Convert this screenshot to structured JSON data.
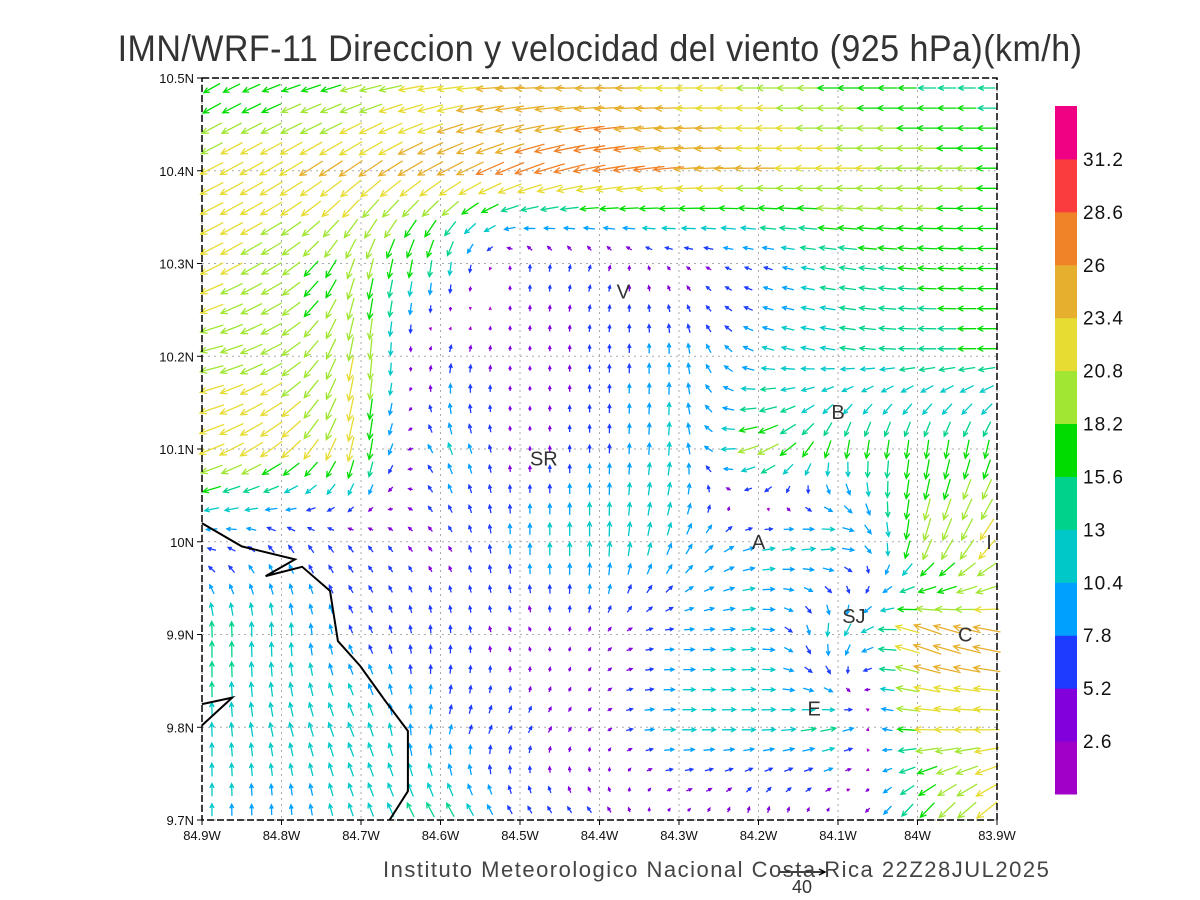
{
  "chart_data": {
    "type": "vector",
    "title": "IMN/WRF-11 Direccion y velocidad del viento (925 hPa)(km/h)",
    "footer": "Instituto Meteorologico Nacional Costa Rica  22Z28JUL2025",
    "reference_vector": {
      "value": 40,
      "label": "40"
    },
    "xlim": [
      -84.9,
      -83.9
    ],
    "ylim": [
      9.7,
      10.5
    ],
    "x_ticks": [
      {
        "v": -84.9,
        "label": "84.9W"
      },
      {
        "v": -84.8,
        "label": "84.8W"
      },
      {
        "v": -84.7,
        "label": "84.7W"
      },
      {
        "v": -84.6,
        "label": "84.6W"
      },
      {
        "v": -84.5,
        "label": "84.5W"
      },
      {
        "v": -84.4,
        "label": "84.4W"
      },
      {
        "v": -84.3,
        "label": "84.3W"
      },
      {
        "v": -84.2,
        "label": "84.2W"
      },
      {
        "v": -84.1,
        "label": "84.1W"
      },
      {
        "v": -84.0,
        "label": "84W"
      },
      {
        "v": -83.9,
        "label": "83.9W"
      }
    ],
    "y_ticks": [
      {
        "v": 9.7,
        "label": "9.7N"
      },
      {
        "v": 9.8,
        "label": "9.8N"
      },
      {
        "v": 9.9,
        "label": "9.9N"
      },
      {
        "v": 10.0,
        "label": "10N"
      },
      {
        "v": 10.1,
        "label": "10.1N"
      },
      {
        "v": 10.2,
        "label": "10.2N"
      },
      {
        "v": 10.3,
        "label": "10.3N"
      },
      {
        "v": 10.4,
        "label": "10.4N"
      },
      {
        "v": 10.5,
        "label": "10.5N"
      }
    ],
    "grid": true,
    "colorbar": {
      "levels": [
        "2.6",
        "5.2",
        "7.8",
        "10.4",
        "13",
        "15.6",
        "18.2",
        "20.8",
        "23.4",
        "26",
        "28.6",
        "31.2"
      ],
      "colors": [
        "#a000c8",
        "#8200dc",
        "#1e3cff",
        "#00a0ff",
        "#00c8c8",
        "#00d28c",
        "#00dc00",
        "#a0e632",
        "#e6dc32",
        "#e6af2d",
        "#f08228",
        "#fa3c3c",
        "#f00082"
      ],
      "placement": "right"
    },
    "cities": [
      {
        "label": "V",
        "lon": -84.37,
        "lat": 10.27
      },
      {
        "label": "B",
        "lon": -84.1,
        "lat": 10.14
      },
      {
        "label": "SR",
        "lon": -84.47,
        "lat": 10.09
      },
      {
        "label": "A",
        "lon": -84.2,
        "lat": 10.0
      },
      {
        "label": "I",
        "lon": -83.91,
        "lat": 10.0
      },
      {
        "label": "SJ",
        "lon": -84.08,
        "lat": 9.92
      },
      {
        "label": "C",
        "lon": -83.94,
        "lat": 9.9
      },
      {
        "label": "E",
        "lon": -84.13,
        "lat": 9.82
      }
    ],
    "coastline": [
      [
        -84.9,
        10.02
      ],
      [
        -84.85,
        9.995
      ],
      [
        -84.783,
        9.981
      ],
      [
        -84.82,
        9.963
      ],
      [
        -84.774,
        9.973
      ],
      [
        -84.739,
        9.947
      ],
      [
        -84.729,
        9.893
      ],
      [
        -84.701,
        9.866
      ],
      [
        -84.67,
        9.829
      ],
      [
        -84.641,
        9.796
      ],
      [
        -84.641,
        9.731
      ],
      [
        -84.664,
        9.7
      ]
    ],
    "coastline2": [
      [
        -84.9,
        9.825
      ],
      [
        -84.862,
        9.832
      ],
      [
        -84.9,
        9.802
      ]
    ],
    "wind_grid": {
      "lons": [
        -84.9,
        -84.8,
        -84.7,
        -84.6,
        -84.5,
        -84.4,
        -84.3,
        -84.2,
        -84.1,
        -84.0,
        -83.9
      ],
      "lats": [
        10.5,
        10.4,
        10.3,
        10.2,
        10.1,
        10.0,
        9.9,
        9.8,
        9.7
      ],
      "uv_kmh": [
        [
          [
            -13,
            -8
          ],
          [
            -15,
            -5
          ],
          [
            -18,
            -4
          ],
          [
            -22,
            -2
          ],
          [
            -25,
            0
          ],
          [
            -24,
            0
          ],
          [
            -22,
            0
          ],
          [
            -20,
            0
          ],
          [
            -17,
            0
          ],
          [
            -15,
            0
          ],
          [
            -14,
            0
          ]
        ],
        [
          [
            -20,
            -10
          ],
          [
            -20,
            -12
          ],
          [
            -20,
            -14
          ],
          [
            -22,
            -12
          ],
          [
            -25,
            -10
          ],
          [
            -28,
            -5
          ],
          [
            -26,
            -2
          ],
          [
            -24,
            0
          ],
          [
            -22,
            0
          ],
          [
            -20,
            0
          ],
          [
            -18,
            0
          ]
        ],
        [
          [
            -20,
            -10
          ],
          [
            -16,
            -10
          ],
          [
            -5,
            -18
          ],
          [
            -2,
            -15
          ],
          [
            0,
            6
          ],
          [
            2,
            5
          ],
          [
            -3,
            2
          ],
          [
            -6,
            2
          ],
          [
            -14,
            2
          ],
          [
            -16,
            1
          ],
          [
            -16,
            0
          ]
        ],
        [
          [
            -20,
            -4
          ],
          [
            -18,
            -10
          ],
          [
            -2,
            -22
          ],
          [
            2,
            8
          ],
          [
            0,
            3
          ],
          [
            0,
            6
          ],
          [
            0,
            10
          ],
          [
            -10,
            3
          ],
          [
            -13,
            2
          ],
          [
            -15,
            0
          ],
          [
            -16,
            0
          ]
        ],
        [
          [
            -22,
            -8
          ],
          [
            -18,
            -14
          ],
          [
            -3,
            -22
          ],
          [
            -4,
            11
          ],
          [
            0,
            3
          ],
          [
            0,
            7
          ],
          [
            1,
            12
          ],
          [
            -20,
            -8
          ],
          [
            -3,
            -16
          ],
          [
            -2,
            -16
          ],
          [
            -4,
            -16
          ]
        ],
        [
          [
            -8,
            0
          ],
          [
            -5,
            6
          ],
          [
            -4,
            5
          ],
          [
            -3,
            3
          ],
          [
            0,
            10
          ],
          [
            0,
            14
          ],
          [
            4,
            10
          ],
          [
            10,
            2
          ],
          [
            14,
            2
          ],
          [
            -5,
            -20
          ],
          [
            -14,
            -18
          ]
        ],
        [
          [
            0,
            15
          ],
          [
            0,
            12
          ],
          [
            -3,
            6
          ],
          [
            0,
            7
          ],
          [
            -2,
            3
          ],
          [
            2,
            3
          ],
          [
            8,
            0
          ],
          [
            12,
            1
          ],
          [
            -4,
            -14
          ],
          [
            -24,
            10
          ],
          [
            -24,
            5
          ]
        ],
        [
          [
            0,
            12
          ],
          [
            -3,
            12
          ],
          [
            -5,
            12
          ],
          [
            2,
            8
          ],
          [
            3,
            6
          ],
          [
            2,
            2
          ],
          [
            12,
            0
          ],
          [
            12,
            0
          ],
          [
            14,
            3
          ],
          [
            -22,
            1
          ],
          [
            -22,
            0
          ]
        ],
        [
          [
            0,
            11
          ],
          [
            0,
            8
          ],
          [
            -4,
            11
          ],
          [
            -8,
            13
          ],
          [
            -4,
            6
          ],
          [
            -4,
            5
          ],
          [
            1,
            2
          ],
          [
            0,
            6
          ],
          [
            0,
            2
          ],
          [
            -10,
            -14
          ],
          [
            -18,
            -16
          ]
        ]
      ]
    }
  }
}
